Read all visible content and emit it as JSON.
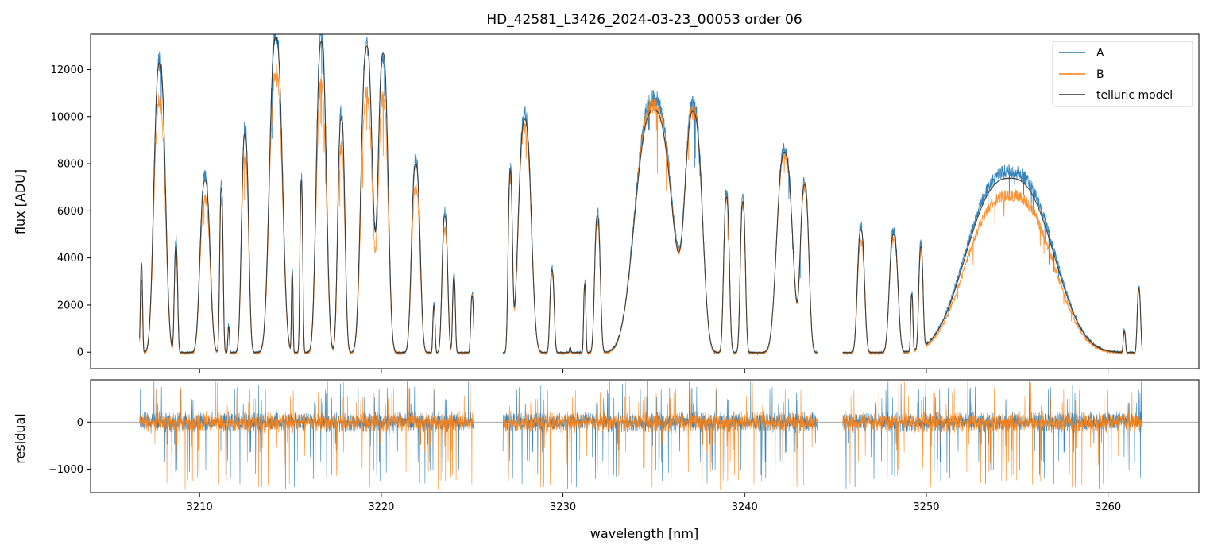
{
  "chart_data": [
    {
      "type": "line",
      "title": "HD_42581_L3426_2024-03-23_00053  order 06",
      "ylabel": "flux [ADU]",
      "xlim": [
        3204,
        3265
      ],
      "ylim": [
        -700,
        13500
      ],
      "yticks": [
        0,
        2000,
        4000,
        6000,
        8000,
        10000,
        12000
      ],
      "xticks": [
        3210,
        3220,
        3230,
        3240,
        3250,
        3260
      ],
      "legend": {
        "placement": "top-right",
        "entries": [
          "A",
          "B",
          "telluric model"
        ]
      },
      "grid": false,
      "colors": {
        "A": "#1f77b4",
        "B": "#ff7f0e",
        "telluric model": "#333333"
      },
      "segments": [
        {
          "range": [
            3206.7,
            3225.1
          ],
          "peaks": [
            {
              "x": 3206.8,
              "a": 3000,
              "b": 2600,
              "m": 3800,
              "w": 0.08
            },
            {
              "x": 3207.8,
              "a": 12400,
              "b": 10700,
              "m": 12300,
              "w": 0.4
            },
            {
              "x": 3208.7,
              "a": 4800,
              "b": 4300,
              "m": 4500,
              "w": 0.12
            },
            {
              "x": 3210.3,
              "a": 7500,
              "b": 6500,
              "m": 7300,
              "w": 0.35
            },
            {
              "x": 3211.2,
              "a": 7200,
              "b": 6500,
              "m": 7000,
              "w": 0.12
            },
            {
              "x": 3211.6,
              "a": 1200,
              "b": 1000,
              "m": 1100,
              "w": 0.06
            },
            {
              "x": 3212.5,
              "a": 9500,
              "b": 8300,
              "m": 9300,
              "w": 0.25
            },
            {
              "x": 3214.2,
              "a": 13600,
              "b": 11900,
              "m": 13400,
              "w": 0.45
            },
            {
              "x": 3215.1,
              "a": 3500,
              "b": 3200,
              "m": 3400,
              "w": 0.06
            },
            {
              "x": 3215.6,
              "a": 7500,
              "b": 7000,
              "m": 7300,
              "w": 0.1
            },
            {
              "x": 3216.7,
              "a": 13500,
              "b": 11400,
              "m": 13200,
              "w": 0.35
            },
            {
              "x": 3217.8,
              "a": 10200,
              "b": 8700,
              "m": 10000,
              "w": 0.25
            },
            {
              "x": 3219.2,
              "a": 13100,
              "b": 11000,
              "m": 13000,
              "w": 0.4
            },
            {
              "x": 3220.1,
              "a": 12600,
              "b": 10800,
              "m": 12700,
              "w": 0.35
            },
            {
              "x": 3221.9,
              "a": 8200,
              "b": 7000,
              "m": 8000,
              "w": 0.3
            },
            {
              "x": 3222.9,
              "a": 2100,
              "b": 1900,
              "m": 2000,
              "w": 0.08
            },
            {
              "x": 3223.5,
              "a": 6000,
              "b": 5200,
              "m": 5800,
              "w": 0.2
            },
            {
              "x": 3224.0,
              "a": 3300,
              "b": 3000,
              "m": 3200,
              "w": 0.1
            },
            {
              "x": 3225.0,
              "a": 2500,
              "b": 2400,
              "m": 2400,
              "w": 0.1
            }
          ]
        },
        {
          "range": [
            3226.7,
            3244.0
          ],
          "peaks": [
            {
              "x": 3227.1,
              "a": 7800,
              "b": 7300,
              "m": 7600,
              "w": 0.15
            },
            {
              "x": 3227.9,
              "a": 10100,
              "b": 9600,
              "m": 9900,
              "w": 0.45
            },
            {
              "x": 3229.4,
              "a": 3600,
              "b": 3300,
              "m": 3500,
              "w": 0.15
            },
            {
              "x": 3230.4,
              "a": 200,
              "b": 200,
              "m": 200,
              "w": 0.05
            },
            {
              "x": 3231.2,
              "a": 3000,
              "b": 2700,
              "m": 2900,
              "w": 0.08
            },
            {
              "x": 3231.9,
              "a": 6000,
              "b": 5600,
              "m": 5800,
              "w": 0.2
            },
            {
              "x": 3235.0,
              "a": 10800,
              "b": 10500,
              "m": 10300,
              "w": 1.3
            },
            {
              "x": 3237.2,
              "a": 10300,
              "b": 10000,
              "m": 10000,
              "w": 0.6
            },
            {
              "x": 3239.0,
              "a": 6800,
              "b": 6600,
              "m": 6600,
              "w": 0.2
            },
            {
              "x": 3239.9,
              "a": 6600,
              "b": 6300,
              "m": 6400,
              "w": 0.18
            },
            {
              "x": 3242.2,
              "a": 8600,
              "b": 8400,
              "m": 8500,
              "w": 0.55
            },
            {
              "x": 3243.3,
              "a": 7200,
              "b": 7000,
              "m": 7100,
              "w": 0.3
            }
          ]
        },
        {
          "range": [
            3245.4,
            3261.9
          ],
          "peaks": [
            {
              "x": 3246.4,
              "a": 5400,
              "b": 4700,
              "m": 5200,
              "w": 0.25
            },
            {
              "x": 3248.2,
              "a": 5200,
              "b": 4800,
              "m": 5000,
              "w": 0.3
            },
            {
              "x": 3249.2,
              "a": 2500,
              "b": 2300,
              "m": 2400,
              "w": 0.08
            },
            {
              "x": 3249.7,
              "a": 4500,
              "b": 4100,
              "m": 4300,
              "w": 0.15
            },
            {
              "x": 3254.6,
              "a": 7700,
              "b": 6700,
              "m": 7400,
              "w": 3.0
            },
            {
              "x": 3260.9,
              "a": 1000,
              "b": 900,
              "m": 900,
              "w": 0.08
            },
            {
              "x": 3261.7,
              "a": 2800,
              "b": 2600,
              "m": 2700,
              "w": 0.12
            }
          ]
        }
      ]
    },
    {
      "type": "line",
      "xlabel": "wavelength [nm]",
      "ylabel": "residual",
      "xlim": [
        3204,
        3265
      ],
      "ylim": [
        -1500,
        900
      ],
      "yticks": [
        -1000,
        0
      ],
      "ytick_labels": [
        "−1000",
        "0"
      ],
      "xticks": [
        3210,
        3220,
        3230,
        3240,
        3250,
        3260
      ],
      "zero_line": true,
      "series_colors": {
        "A": "#1f77b4",
        "B": "#ff7f0e"
      },
      "segments": [
        [
          3206.7,
          3225.1
        ],
        [
          3226.7,
          3244.0
        ],
        [
          3245.4,
          3261.9
        ]
      ],
      "typical_amplitude": 180,
      "spike_min": -1450,
      "spike_max": 870
    }
  ]
}
